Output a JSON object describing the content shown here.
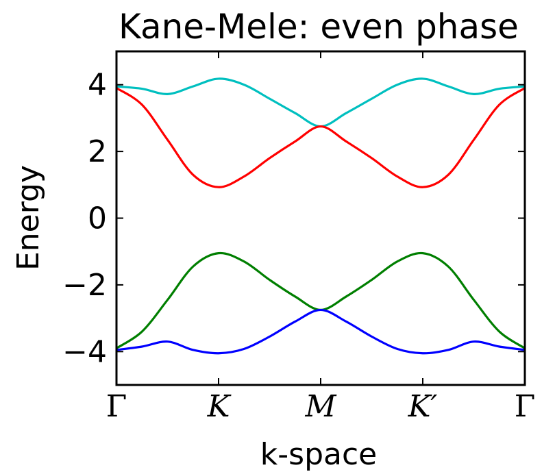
{
  "chart_data": {
    "type": "line",
    "title": "Kane-Mele: even phase",
    "xlabel": "k-space",
    "ylabel": "Energy",
    "ylim": [
      -5,
      5
    ],
    "xlim": [
      0,
      4
    ],
    "grid": false,
    "yticks": [
      {
        "value": 4,
        "label": "4"
      },
      {
        "value": 2,
        "label": "2"
      },
      {
        "value": 0,
        "label": "0"
      },
      {
        "value": -2,
        "label": "−2"
      },
      {
        "value": -4,
        "label": "−4"
      }
    ],
    "xticks": [
      {
        "value": 0,
        "label": "Γ"
      },
      {
        "value": 1,
        "label": "K"
      },
      {
        "value": 2,
        "label": "M"
      },
      {
        "value": 3,
        "label": "K′"
      },
      {
        "value": 4,
        "label": "Γ"
      }
    ],
    "series": [
      {
        "color": "#00bfbf",
        "points": [
          [
            0,
            3.95
          ],
          [
            0.25,
            3.88
          ],
          [
            0.5,
            3.72
          ],
          [
            0.75,
            3.95
          ],
          [
            1,
            4.18
          ],
          [
            1.25,
            4.0
          ],
          [
            1.5,
            3.58
          ],
          [
            1.75,
            3.15
          ],
          [
            2,
            2.75
          ],
          [
            2.25,
            3.15
          ],
          [
            2.5,
            3.58
          ],
          [
            2.75,
            4.0
          ],
          [
            3,
            4.18
          ],
          [
            3.25,
            3.95
          ],
          [
            3.5,
            3.72
          ],
          [
            3.75,
            3.88
          ],
          [
            4,
            3.95
          ]
        ]
      },
      {
        "color": "#ff0000",
        "points": [
          [
            0,
            3.9
          ],
          [
            0.25,
            3.4
          ],
          [
            0.5,
            2.35
          ],
          [
            0.75,
            1.3
          ],
          [
            1,
            0.93
          ],
          [
            1.25,
            1.25
          ],
          [
            1.5,
            1.8
          ],
          [
            1.75,
            2.3
          ],
          [
            2,
            2.75
          ],
          [
            2.25,
            2.3
          ],
          [
            2.5,
            1.8
          ],
          [
            2.75,
            1.25
          ],
          [
            3,
            0.93
          ],
          [
            3.25,
            1.3
          ],
          [
            3.5,
            2.35
          ],
          [
            3.75,
            3.4
          ],
          [
            4,
            3.9
          ]
        ]
      },
      {
        "color": "#007f00",
        "points": [
          [
            0,
            -3.9
          ],
          [
            0.25,
            -3.4
          ],
          [
            0.5,
            -2.45
          ],
          [
            0.75,
            -1.45
          ],
          [
            1,
            -1.05
          ],
          [
            1.25,
            -1.3
          ],
          [
            1.5,
            -1.85
          ],
          [
            1.75,
            -2.35
          ],
          [
            2,
            -2.75
          ],
          [
            2.25,
            -2.35
          ],
          [
            2.5,
            -1.85
          ],
          [
            2.75,
            -1.3
          ],
          [
            3,
            -1.05
          ],
          [
            3.25,
            -1.45
          ],
          [
            3.5,
            -2.45
          ],
          [
            3.75,
            -3.4
          ],
          [
            4,
            -3.9
          ]
        ]
      },
      {
        "color": "#0000ff",
        "points": [
          [
            0,
            -3.95
          ],
          [
            0.25,
            -3.85
          ],
          [
            0.5,
            -3.7
          ],
          [
            0.75,
            -3.95
          ],
          [
            1,
            -4.05
          ],
          [
            1.25,
            -3.92
          ],
          [
            1.5,
            -3.55
          ],
          [
            1.75,
            -3.1
          ],
          [
            2,
            -2.75
          ],
          [
            2.25,
            -3.1
          ],
          [
            2.5,
            -3.55
          ],
          [
            2.75,
            -3.92
          ],
          [
            3,
            -4.05
          ],
          [
            3.25,
            -3.95
          ],
          [
            3.5,
            -3.7
          ],
          [
            3.75,
            -3.85
          ],
          [
            4,
            -3.95
          ]
        ]
      }
    ]
  }
}
